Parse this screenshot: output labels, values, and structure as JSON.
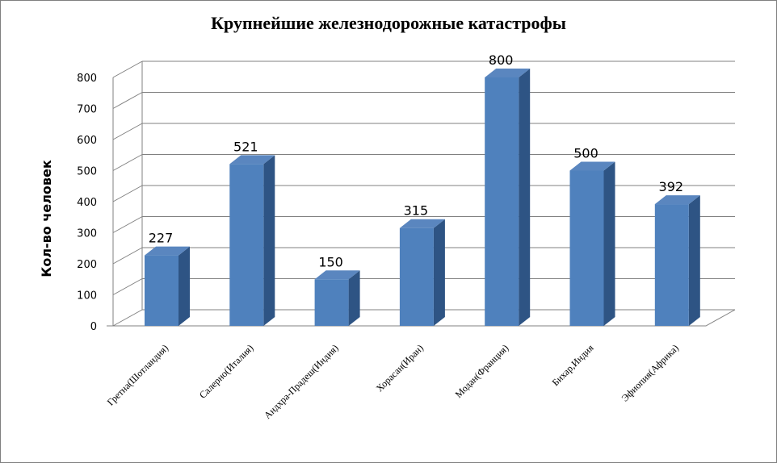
{
  "chart_data": {
    "type": "bar",
    "title": "Крупнейшие железнодорожные катастрофы",
    "xlabel": "",
    "ylabel": "Кол-во человек",
    "categories": [
      "Гретна(Шотландия)",
      "Салерно(Италия)",
      "Андхра-Прадеш(Индия)",
      "Хорасан(Иран)",
      "Модан(Франция)",
      "Бихар,Индия",
      "Эфиопия(Африка)"
    ],
    "values": [
      227,
      521,
      150,
      315,
      800,
      500,
      392
    ],
    "ylim": [
      0,
      800
    ],
    "yticks": [
      0,
      100,
      200,
      300,
      400,
      500,
      600,
      700,
      800
    ],
    "grid": true,
    "legend": "none",
    "colors": {
      "bar_front": "#4F81BD",
      "bar_side": "#2E5484",
      "bar_top": "#5A86BF",
      "grid": "#808080"
    }
  }
}
